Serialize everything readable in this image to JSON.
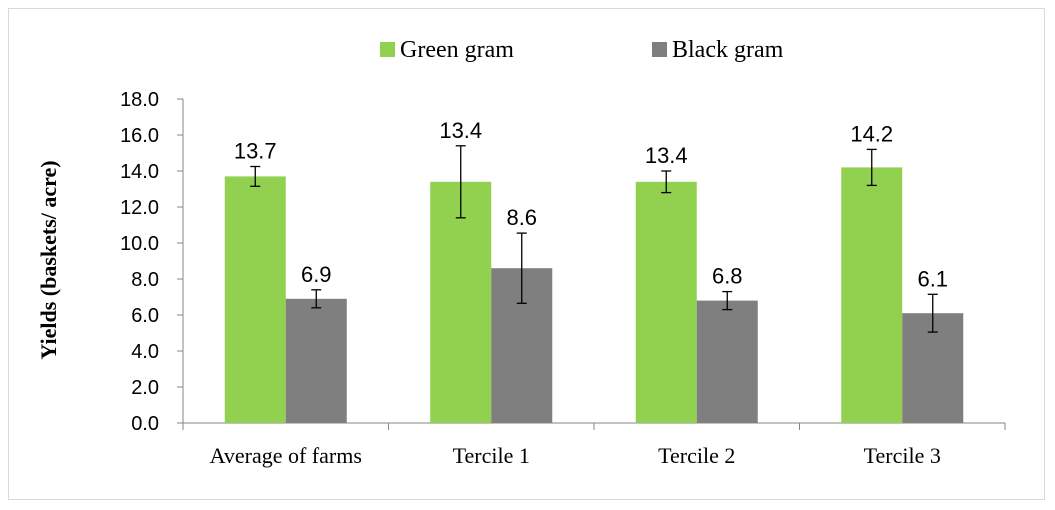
{
  "chart_data": {
    "type": "bar",
    "title": "",
    "xlabel": "",
    "ylabel": "Yields (baskets/ acre)",
    "categories": [
      "Average of farms",
      "Tercile 1",
      "Tercile 2",
      "Tercile 3"
    ],
    "series": [
      {
        "name": "Green gram",
        "color": "#92d050",
        "values": [
          13.7,
          13.4,
          13.4,
          14.2
        ],
        "labels": [
          "13.7",
          "13.4",
          "13.4",
          "14.2"
        ],
        "error": [
          0.55,
          2.0,
          0.6,
          1.0
        ]
      },
      {
        "name": "Black gram",
        "color": "#7f7f7f",
        "values": [
          6.9,
          8.6,
          6.8,
          6.1
        ],
        "labels": [
          "6.9",
          "8.6",
          "6.8",
          "6.1"
        ],
        "error": [
          0.5,
          1.95,
          0.5,
          1.05
        ]
      }
    ],
    "ylim": [
      0,
      18
    ],
    "yticks": [
      "0.0",
      "2.0",
      "4.0",
      "6.0",
      "8.0",
      "10.0",
      "12.0",
      "14.0",
      "16.0",
      "18.0"
    ],
    "legend_position": "top",
    "grid": false
  }
}
